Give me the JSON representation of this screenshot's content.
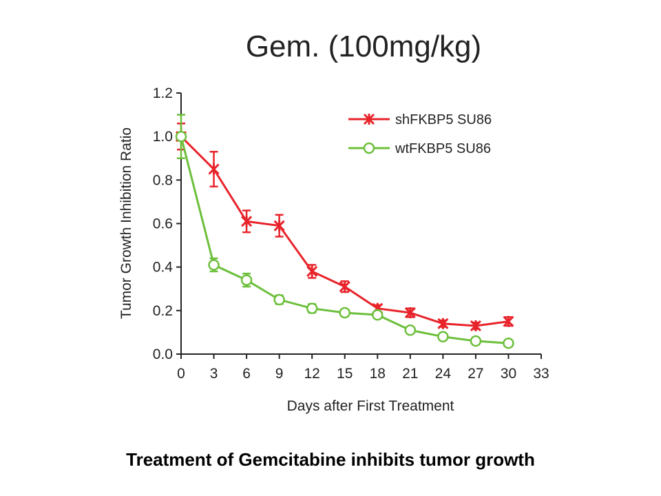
{
  "slide": {
    "caption": "Treatment of Gemcitabine inhibits tumor growth"
  },
  "colors": {
    "sh": "#e8232a",
    "wt": "#6cbf3a",
    "axis": "#222222"
  },
  "chart_data": {
    "type": "line",
    "title": "Gem. (100mg/kg)",
    "xlabel": "Days after First Treatment",
    "ylabel": "Tumor Growth Inhibition Ratio",
    "xlim": [
      0,
      33
    ],
    "ylim": [
      0,
      1.2
    ],
    "xticks": [
      0,
      3,
      6,
      9,
      12,
      15,
      18,
      21,
      24,
      27,
      30,
      33
    ],
    "yticks": [
      "0.0",
      "0.2",
      "0.4",
      "0.6",
      "0.8",
      "1.0",
      "1.2"
    ],
    "legend_position": "top-right",
    "series": [
      {
        "name": "shFKBP5 SU86",
        "marker": "asterisk",
        "x": [
          0,
          3,
          6,
          9,
          12,
          15,
          18,
          21,
          24,
          27,
          30
        ],
        "y": [
          1.0,
          0.85,
          0.61,
          0.59,
          0.38,
          0.31,
          0.21,
          0.19,
          0.14,
          0.13,
          0.15
        ],
        "err": [
          0.06,
          0.08,
          0.05,
          0.05,
          0.03,
          0.025,
          0.015,
          0.02,
          0.015,
          0.015,
          0.02
        ]
      },
      {
        "name": "wtFKBP5 SU86",
        "marker": "circle",
        "x": [
          0,
          3,
          6,
          9,
          12,
          15,
          18,
          21,
          24,
          27,
          30
        ],
        "y": [
          1.0,
          0.41,
          0.34,
          0.25,
          0.21,
          0.19,
          0.18,
          0.11,
          0.08,
          0.06,
          0.05
        ],
        "err": [
          0.1,
          0.03,
          0.03,
          0.02,
          0.02,
          0.015,
          0.015,
          0.01,
          0.01,
          0.01,
          0.01
        ]
      }
    ]
  }
}
